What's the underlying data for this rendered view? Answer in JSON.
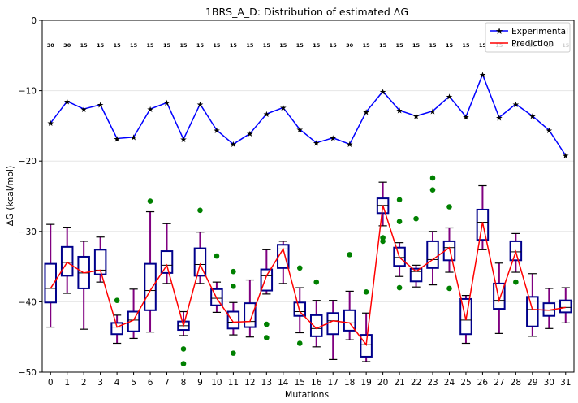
{
  "chart_data": {
    "type": "box",
    "title": "1BRS_A_D: Distribution of estimated ΔG",
    "xlabel": "Mutations",
    "ylabel": "ΔG (kcal/mol)",
    "ylim": [
      -50,
      0
    ],
    "yticks": [
      0,
      -10,
      -20,
      -30,
      -40,
      -50
    ],
    "grid": "horizontal",
    "legend_position": "top-right",
    "categories": [
      "0",
      "1",
      "2",
      "3",
      "4",
      "5",
      "6",
      "7",
      "8",
      "9",
      "10",
      "11",
      "12",
      "13",
      "14",
      "15",
      "16",
      "17",
      "18",
      "19",
      "20",
      "21",
      "22",
      "23",
      "24",
      "25",
      "26",
      "27",
      "28",
      "29",
      "30",
      "31"
    ],
    "counts": [
      "30",
      "30",
      "15",
      "15",
      "15",
      "15",
      "15",
      "15",
      "15",
      "15",
      "15",
      "15",
      "15",
      "15",
      "15",
      "15",
      "15",
      "15",
      "30",
      "15",
      "15",
      "15",
      "15",
      "15",
      "15",
      "15",
      "15",
      "15",
      "15",
      "15",
      "15",
      "15"
    ],
    "experimental": {
      "name": "Experimental",
      "color": "#0000ff",
      "values": [
        -14.6,
        -11.5,
        -12.6,
        -12.0,
        -16.8,
        -16.6,
        -12.6,
        -11.7,
        -16.9,
        -11.9,
        -15.6,
        -17.6,
        -16.1,
        -13.3,
        -12.4,
        -15.5,
        -17.4,
        -16.7,
        -17.6,
        -13.0,
        -10.1,
        -12.8,
        -13.6,
        -12.9,
        -10.8,
        -13.7,
        -7.7,
        -13.8,
        -11.9,
        -13.6,
        -15.6,
        -19.2
      ]
    },
    "prediction": {
      "name": "Prediction",
      "color": "#ff0000",
      "values": [
        -38.1,
        -34.4,
        -35.9,
        -35.5,
        -43.6,
        -42.6,
        -38.4,
        -34.8,
        -43.4,
        -34.7,
        -39.5,
        -42.9,
        -42.8,
        -36.3,
        -32.5,
        -41.4,
        -43.8,
        -42.7,
        -43.0,
        -46.1,
        -26.3,
        -33.7,
        -35.7,
        -34.0,
        -32.3,
        -42.6,
        -28.7,
        -39.8,
        -32.9,
        -41.1,
        -41.2,
        -40.8
      ]
    },
    "boxes": [
      {
        "whislo": -43.6,
        "q1": -40.1,
        "med": -38.1,
        "q3": -34.6,
        "whishi": -29.0,
        "fliers": []
      },
      {
        "whislo": -38.8,
        "q1": -36.3,
        "med": -34.4,
        "q3": -32.2,
        "whishi": -29.4,
        "fliers": []
      },
      {
        "whislo": -43.9,
        "q1": -38.1,
        "med": -35.9,
        "q3": -33.6,
        "whishi": -31.4,
        "fliers": []
      },
      {
        "whislo": -37.2,
        "q1": -36.1,
        "med": -35.5,
        "q3": -32.6,
        "whishi": -30.8,
        "fliers": []
      },
      {
        "whislo": -45.9,
        "q1": -44.6,
        "med": -43.6,
        "q3": -43.0,
        "whishi": -41.9,
        "fliers": [
          -39.8
        ]
      },
      {
        "whislo": -45.2,
        "q1": -44.2,
        "med": -42.6,
        "q3": -41.4,
        "whishi": -38.2,
        "fliers": []
      },
      {
        "whislo": -44.3,
        "q1": -41.2,
        "med": -38.4,
        "q3": -34.6,
        "whishi": -27.2,
        "fliers": [
          -25.7
        ]
      },
      {
        "whislo": -37.4,
        "q1": -35.9,
        "med": -34.8,
        "q3": -32.8,
        "whishi": -28.9,
        "fliers": []
      },
      {
        "whislo": -44.8,
        "q1": -44.0,
        "med": -43.4,
        "q3": -42.8,
        "whishi": -41.4,
        "fliers": [
          -46.7,
          -48.8
        ]
      },
      {
        "whislo": -37.4,
        "q1": -36.3,
        "med": -34.7,
        "q3": -32.4,
        "whishi": -30.1,
        "fliers": [
          -27.0
        ]
      },
      {
        "whislo": -41.5,
        "q1": -40.5,
        "med": -39.5,
        "q3": -38.2,
        "whishi": -37.2,
        "fliers": [
          -33.5
        ]
      },
      {
        "whislo": -44.7,
        "q1": -43.8,
        "med": -42.9,
        "q3": -41.4,
        "whishi": -40.1,
        "fliers": [
          -35.7,
          -37.8,
          -47.3
        ]
      },
      {
        "whislo": -45.0,
        "q1": -43.6,
        "med": -42.8,
        "q3": -40.2,
        "whishi": -36.9,
        "fliers": []
      },
      {
        "whislo": -38.9,
        "q1": -38.4,
        "med": -36.3,
        "q3": -35.4,
        "whishi": -32.6,
        "fliers": [
          -43.2,
          -45.1
        ]
      },
      {
        "whislo": -37.4,
        "q1": -35.2,
        "med": -32.5,
        "q3": -31.9,
        "whishi": -31.4,
        "fliers": []
      },
      {
        "whislo": -44.4,
        "q1": -42.0,
        "med": -41.4,
        "q3": -40.1,
        "whishi": -38.0,
        "fliers": [
          -35.2,
          -45.9
        ]
      },
      {
        "whislo": -46.4,
        "q1": -44.9,
        "med": -43.8,
        "q3": -41.9,
        "whishi": -39.8,
        "fliers": [
          -37.2
        ]
      },
      {
        "whislo": -48.2,
        "q1": -44.6,
        "med": -42.7,
        "q3": -41.6,
        "whishi": -39.8,
        "fliers": []
      },
      {
        "whislo": -45.4,
        "q1": -44.1,
        "med": -43.0,
        "q3": -41.2,
        "whishi": -38.5,
        "fliers": [
          -33.3
        ]
      },
      {
        "whislo": -48.5,
        "q1": -47.8,
        "med": -46.1,
        "q3": -44.7,
        "whishi": -41.6,
        "fliers": [
          -38.6
        ]
      },
      {
        "whislo": -29.2,
        "q1": -27.4,
        "med": -26.3,
        "q3": -25.3,
        "whishi": -23.0,
        "fliers": [
          -30.9,
          -31.4
        ]
      },
      {
        "whislo": -36.4,
        "q1": -34.9,
        "med": -33.7,
        "q3": -32.3,
        "whishi": -31.6,
        "fliers": [
          -25.5,
          -28.6,
          -38.0
        ]
      },
      {
        "whislo": -37.9,
        "q1": -37.1,
        "med": -35.7,
        "q3": -35.3,
        "whishi": -34.8,
        "fliers": [
          -28.2
        ]
      },
      {
        "whislo": -37.6,
        "q1": -35.2,
        "med": -34.0,
        "q3": -31.4,
        "whishi": -30.0,
        "fliers": [
          -22.4,
          -24.1
        ]
      },
      {
        "whislo": -35.8,
        "q1": -34.1,
        "med": -32.3,
        "q3": -31.4,
        "whishi": -29.5,
        "fliers": [
          -26.5,
          -38.1
        ]
      },
      {
        "whislo": -45.9,
        "q1": -44.6,
        "med": -42.6,
        "q3": -39.6,
        "whishi": -39.1,
        "fliers": []
      },
      {
        "whislo": -32.6,
        "q1": -31.2,
        "med": -28.7,
        "q3": -26.9,
        "whishi": -23.5,
        "fliers": []
      },
      {
        "whislo": -44.5,
        "q1": -41.0,
        "med": -39.8,
        "q3": -37.4,
        "whishi": -34.5,
        "fliers": []
      },
      {
        "whislo": -35.8,
        "q1": -34.1,
        "med": -32.9,
        "q3": -31.4,
        "whishi": -30.3,
        "fliers": [
          -37.2
        ]
      },
      {
        "whislo": -44.9,
        "q1": -43.5,
        "med": -41.1,
        "q3": -39.3,
        "whishi": -36.0,
        "fliers": []
      },
      {
        "whislo": -43.8,
        "q1": -42.0,
        "med": -41.2,
        "q3": -40.2,
        "whishi": -38.1,
        "fliers": []
      },
      {
        "whislo": -43.0,
        "q1": -41.5,
        "med": -40.8,
        "q3": -39.8,
        "whishi": -38.0,
        "fliers": []
      }
    ],
    "style": {
      "box_color": "#00008b",
      "whisker_color": "#800080",
      "flier_color": "#008000"
    }
  }
}
